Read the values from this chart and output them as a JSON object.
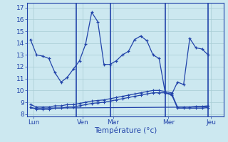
{
  "background_color": "#cce8f0",
  "grid_color": "#a8ccd4",
  "line_color": "#2244aa",
  "xlabel": "Température (°c)",
  "ylabel_ticks": [
    8,
    9,
    10,
    11,
    12,
    13,
    14,
    15,
    16,
    17
  ],
  "day_labels": [
    "Lun",
    "Ven",
    "Mar",
    "Mer",
    "Jeu"
  ],
  "day_tick_positions": [
    0.5,
    8.5,
    13.5,
    22.5,
    29.5
  ],
  "day_vline_positions": [
    7.5,
    13.0,
    22.0,
    29.0
  ],
  "ylim": [
    7.8,
    17.4
  ],
  "xlim": [
    -0.5,
    31.5
  ],
  "line1_x": [
    0,
    1,
    2,
    3,
    4,
    5,
    6,
    7,
    8,
    9,
    10,
    11,
    12,
    13,
    14,
    15,
    16,
    17,
    18,
    19,
    20,
    21,
    22,
    23,
    24,
    25,
    26,
    27,
    28,
    29
  ],
  "line1_y": [
    14.3,
    13.0,
    12.9,
    12.7,
    11.5,
    10.7,
    11.1,
    11.8,
    12.5,
    13.9,
    16.6,
    15.8,
    12.2,
    12.2,
    12.5,
    13.0,
    13.3,
    14.3,
    14.6,
    14.2,
    13.0,
    12.7,
    9.8,
    9.6,
    10.7,
    10.5,
    14.4,
    13.6,
    13.5,
    13.0
  ],
  "line2_x": [
    0,
    1,
    2,
    3,
    4,
    5,
    6,
    7,
    8,
    9,
    10,
    11,
    12,
    13,
    14,
    15,
    16,
    17,
    18,
    19,
    20,
    21,
    22,
    23,
    24,
    25,
    26,
    27,
    28,
    29
  ],
  "line2_y": [
    8.8,
    8.6,
    8.6,
    8.6,
    8.7,
    8.7,
    8.8,
    8.8,
    8.9,
    9.0,
    9.1,
    9.15,
    9.2,
    9.3,
    9.4,
    9.5,
    9.6,
    9.7,
    9.8,
    9.9,
    10.0,
    10.0,
    9.9,
    9.8,
    8.6,
    8.6,
    8.6,
    8.65,
    8.65,
    8.7
  ],
  "line3_x": [
    0,
    1,
    2,
    3,
    4,
    5,
    6,
    7,
    8,
    9,
    10,
    11,
    12,
    13,
    14,
    15,
    16,
    17,
    18,
    19,
    20,
    21,
    22,
    23,
    24,
    25,
    26,
    27,
    28,
    29
  ],
  "line3_y": [
    8.6,
    8.4,
    8.4,
    8.4,
    8.5,
    8.5,
    8.6,
    8.6,
    8.7,
    8.8,
    8.9,
    8.95,
    9.0,
    9.1,
    9.2,
    9.3,
    9.4,
    9.5,
    9.6,
    9.7,
    9.8,
    9.8,
    9.8,
    9.7,
    8.5,
    8.5,
    8.5,
    8.5,
    8.5,
    8.55
  ],
  "line4_x": [
    0,
    29
  ],
  "line4_y": [
    8.5,
    8.6
  ]
}
